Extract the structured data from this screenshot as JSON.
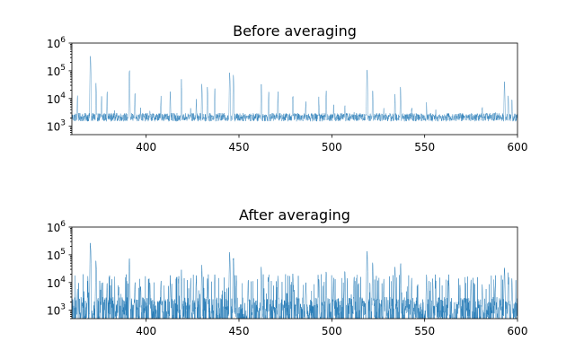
{
  "chart_data": [
    {
      "type": "line",
      "title": "Before averaging",
      "xlabel": "",
      "ylabel": "",
      "xlim": [
        360,
        600
      ],
      "ylim": [
        500,
        1000000
      ],
      "yscale": "log",
      "xticks": [
        400,
        450,
        500,
        550,
        600
      ],
      "xtick_labels": [
        "400",
        "450",
        "500",
        "550",
        "600"
      ],
      "yticks": [
        1000,
        10000,
        100000,
        1000000
      ],
      "ytick_labels": [
        {
          "base": "10",
          "exp": "3"
        },
        {
          "base": "10",
          "exp": "4"
        },
        {
          "base": "10",
          "exp": "5"
        },
        {
          "base": "10",
          "exp": "6"
        }
      ],
      "grid": false,
      "series": [
        {
          "color": "#1f77b4",
          "baseline_range": [
            1500,
            3000
          ],
          "peaks": [
            [
              363,
              15000
            ],
            [
              370,
              450000
            ],
            [
              373,
              40000
            ],
            [
              376,
              14000
            ],
            [
              379,
              18000
            ],
            [
              383,
              4000
            ],
            [
              391,
              140000
            ],
            [
              394,
              20000
            ],
            [
              397,
              6000
            ],
            [
              402,
              5000
            ],
            [
              408,
              15000
            ],
            [
              413,
              20000
            ],
            [
              419,
              50000
            ],
            [
              424,
              6000
            ],
            [
              427,
              12000
            ],
            [
              430,
              35000
            ],
            [
              433,
              35000
            ],
            [
              437,
              25000
            ],
            [
              445,
              110000
            ],
            [
              447,
              90000
            ],
            [
              455,
              3000
            ],
            [
              462,
              50000
            ],
            [
              466,
              20000
            ],
            [
              471,
              18000
            ],
            [
              479,
              15000
            ],
            [
              486,
              10000
            ],
            [
              493,
              12000
            ],
            [
              497,
              30000
            ],
            [
              501,
              8000
            ],
            [
              507,
              7000
            ],
            [
              512,
              4000
            ],
            [
              519,
              140000
            ],
            [
              522,
              30000
            ],
            [
              528,
              6000
            ],
            [
              534,
              15000
            ],
            [
              537,
              30000
            ],
            [
              543,
              6000
            ],
            [
              551,
              8000
            ],
            [
              556,
              4000
            ],
            [
              563,
              3500
            ],
            [
              569,
              3000
            ],
            [
              575,
              3000
            ],
            [
              581,
              6000
            ],
            [
              588,
              4000
            ],
            [
              593,
              50000
            ],
            [
              595,
              20000
            ],
            [
              597,
              12000
            ]
          ]
        }
      ]
    },
    {
      "type": "line",
      "title": "After averaging",
      "xlabel": "",
      "ylabel": "",
      "xlim": [
        360,
        600
      ],
      "ylim": [
        500,
        1000000
      ],
      "yscale": "log",
      "xticks": [
        400,
        450,
        500,
        550,
        600
      ],
      "xtick_labels": [
        "400",
        "450",
        "500",
        "550",
        "600"
      ],
      "yticks": [
        1000,
        10000,
        100000,
        1000000
      ],
      "ytick_labels": [
        {
          "base": "10",
          "exp": "3"
        },
        {
          "base": "10",
          "exp": "4"
        },
        {
          "base": "10",
          "exp": "5"
        },
        {
          "base": "10",
          "exp": "6"
        }
      ],
      "grid": false,
      "series": [
        {
          "color": "#1f77b4",
          "baseline_range": [
            500,
            3000
          ],
          "peaks": [
            [
              363,
              6000
            ],
            [
              370,
              350000
            ],
            [
              373,
              80000
            ],
            [
              376,
              15000
            ],
            [
              379,
              12000
            ],
            [
              385,
              8000
            ],
            [
              391,
              80000
            ],
            [
              394,
              15000
            ],
            [
              397,
              10000
            ],
            [
              402,
              12000
            ],
            [
              408,
              15000
            ],
            [
              413,
              20000
            ],
            [
              419,
              30000
            ],
            [
              424,
              15000
            ],
            [
              427,
              20000
            ],
            [
              430,
              45000
            ],
            [
              433,
              20000
            ],
            [
              437,
              25000
            ],
            [
              445,
              140000
            ],
            [
              447,
              100000
            ],
            [
              455,
              15000
            ],
            [
              462,
              40000
            ],
            [
              466,
              25000
            ],
            [
              471,
              20000
            ],
            [
              479,
              30000
            ],
            [
              486,
              15000
            ],
            [
              493,
              20000
            ],
            [
              497,
              30000
            ],
            [
              501,
              15000
            ],
            [
              507,
              40000
            ],
            [
              512,
              20000
            ],
            [
              519,
              150000
            ],
            [
              522,
              60000
            ],
            [
              528,
              15000
            ],
            [
              534,
              40000
            ],
            [
              537,
              60000
            ],
            [
              543,
              15000
            ],
            [
              551,
              20000
            ],
            [
              556,
              15000
            ],
            [
              563,
              20000
            ],
            [
              569,
              12000
            ],
            [
              575,
              15000
            ],
            [
              581,
              10000
            ],
            [
              588,
              10000
            ],
            [
              593,
              40000
            ],
            [
              595,
              25000
            ],
            [
              597,
              15000
            ]
          ]
        }
      ]
    }
  ]
}
